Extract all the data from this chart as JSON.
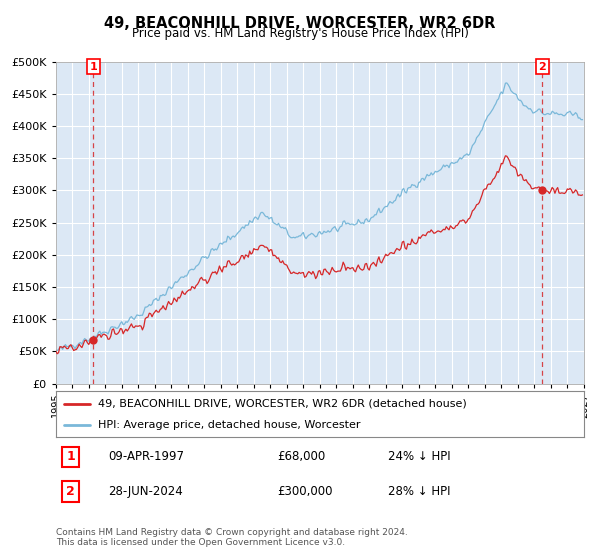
{
  "title": "49, BEACONHILL DRIVE, WORCESTER, WR2 6DR",
  "subtitle": "Price paid vs. HM Land Registry's House Price Index (HPI)",
  "legend_line1": "49, BEACONHILL DRIVE, WORCESTER, WR2 6DR (detached house)",
  "legend_line2": "HPI: Average price, detached house, Worcester",
  "transaction1_date": "09-APR-1997",
  "transaction1_price": "£68,000",
  "transaction1_hpi": "24% ↓ HPI",
  "transaction2_date": "28-JUN-2024",
  "transaction2_price": "£300,000",
  "transaction2_hpi": "28% ↓ HPI",
  "copyright": "Contains HM Land Registry data © Crown copyright and database right 2024.\nThis data is licensed under the Open Government Licence v3.0.",
  "hpi_color": "#7ab8d9",
  "price_color": "#d62728",
  "vline_color": "#d62728",
  "background_color": "#dce8f5",
  "grid_color": "#ffffff",
  "ylim": [
    0,
    500000
  ],
  "xlim_start": 1995.0,
  "xlim_end": 2027.0,
  "transaction1_x": 1997.27,
  "transaction1_y": 68000,
  "transaction2_x": 2024.49,
  "transaction2_y": 300000
}
